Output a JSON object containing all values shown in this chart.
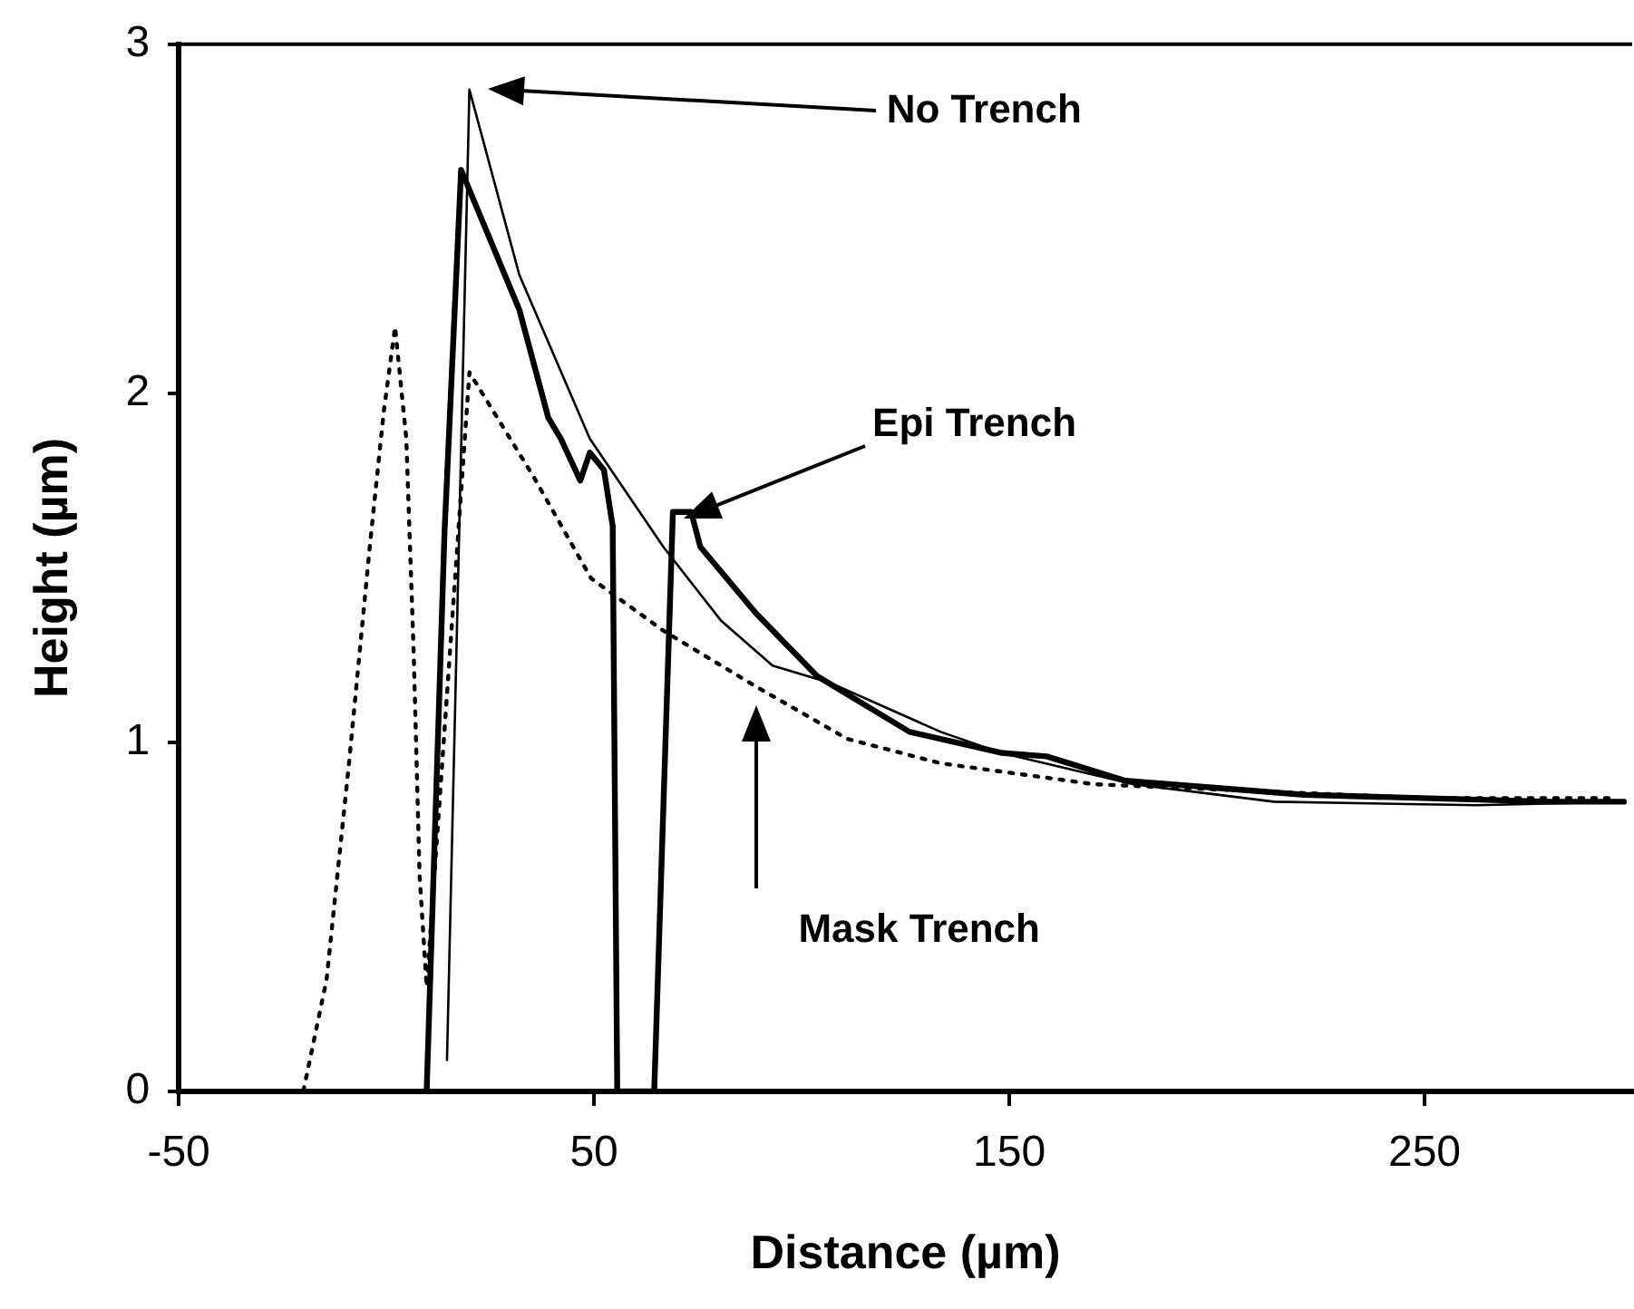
{
  "chart_data": {
    "type": "line",
    "xlabel": "Distance (µm)",
    "ylabel": "Height (µm)",
    "xlim": [
      -50,
      300
    ],
    "ylim": [
      0,
      3
    ],
    "xticks": [
      -50,
      50,
      150,
      250
    ],
    "yticks": [
      0,
      1,
      2,
      3
    ],
    "grid": false,
    "legend": false,
    "marker": "none",
    "series": [
      {
        "color": "#000000",
        "line_style": "solid",
        "x": [
          14.6,
          20,
          32,
          49,
          66.7,
          80.5,
          93,
          107,
          133.5,
          148,
          180,
          213.7,
          262.7,
          298
        ],
        "values": [
          0.09,
          2.87,
          2.34,
          1.87,
          1.56,
          1.35,
          1.22,
          1.17,
          1.03,
          0.97,
          0.88,
          0.83,
          0.82,
          0.83
        ]
      },
      {
        "color": "#000000",
        "line_style": "solid",
        "x": [
          9.7,
          14,
          18,
          32,
          39,
          42,
          46.7,
          49,
          52.4,
          54.5,
          55.6,
          64.5,
          69,
          73.4,
          75.6,
          89,
          103.7,
          126,
          148,
          159,
          178,
          221,
          280.5,
          298
        ],
        "values": [
          0,
          1.6,
          2.64,
          2.24,
          1.93,
          1.87,
          1.75,
          1.83,
          1.78,
          1.62,
          0,
          0,
          1.66,
          1.66,
          1.56,
          1.37,
          1.19,
          1.03,
          0.97,
          0.96,
          0.89,
          0.85,
          0.83,
          0.83
        ]
      },
      {
        "color": "#000000",
        "line_style": "dotted",
        "x": [
          -29,
          -20,
          -14.4,
          -9,
          -4,
          -0.6,
          2.1,
          4.8,
          6.6,
          8,
          9.7,
          20,
          35.5,
          49.3,
          66.7,
          89,
          111,
          133.5,
          170.5,
          250.7,
          295
        ],
        "values": [
          0,
          0,
          0.32,
          0.94,
          1.56,
          1.95,
          2.19,
          1.87,
          1.25,
          0.62,
          0.3,
          2.06,
          1.76,
          1.47,
          1.32,
          1.16,
          1.01,
          0.94,
          0.88,
          0.84,
          0.84
        ]
      }
    ],
    "annotations": [
      "No Trench",
      "Epi Trench",
      "Mask Trench"
    ]
  }
}
